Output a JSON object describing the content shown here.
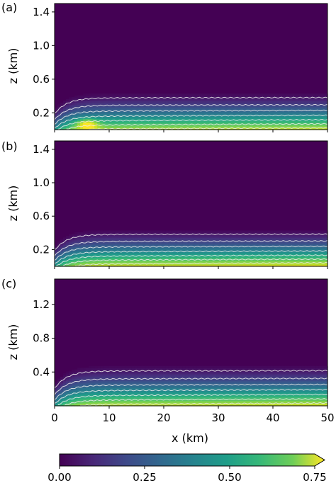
{
  "chart_data": {
    "type": "heatmap",
    "colormap": "viridis",
    "contour_color": "#e8e8e8",
    "panels": [
      {
        "label": "(a)",
        "ylabel": "z (km)",
        "yticks": [
          0.2,
          0.6,
          1.0,
          1.4
        ],
        "ytick_labels": [
          "0.2",
          "0.6",
          "1.0",
          "1.4"
        ],
        "ylim": [
          0,
          1.5
        ],
        "xlim": [
          0,
          50
        ],
        "plume_top_km": 0.46,
        "max_value": 0.7,
        "hotspot_x_km": 6,
        "contour_levels": [
          0.05,
          0.15,
          0.25,
          0.35,
          0.45,
          0.55,
          0.65
        ]
      },
      {
        "label": "(b)",
        "ylabel": "z (km)",
        "yticks": [
          0.2,
          0.6,
          1.0,
          1.4
        ],
        "ytick_labels": [
          "0.2",
          "0.6",
          "1.0",
          "1.4"
        ],
        "ylim": [
          0,
          1.5
        ],
        "xlim": [
          0,
          50
        ],
        "plume_top_km": 0.46,
        "max_value": 0.75,
        "hotspot_x_km": null,
        "contour_levels": [
          0.05,
          0.15,
          0.25,
          0.35,
          0.45,
          0.55,
          0.65
        ]
      },
      {
        "label": "(c)",
        "ylabel": "z (km)",
        "yticks": [
          0.4,
          0.8,
          1.2
        ],
        "ytick_labels": [
          "0.4",
          "0.8",
          "1.2"
        ],
        "ylim": [
          0,
          1.5
        ],
        "xlim": [
          0,
          50
        ],
        "plume_top_km": 0.5,
        "max_value": 0.72,
        "hotspot_x_km": null,
        "contour_levels": [
          0.05,
          0.15,
          0.25,
          0.35,
          0.45,
          0.55,
          0.65
        ]
      }
    ],
    "xlabel": "x (km)",
    "xticks": [
      0,
      10,
      20,
      30,
      40,
      50
    ],
    "xtick_labels": [
      "0",
      "10",
      "20",
      "30",
      "40",
      "50"
    ],
    "colorbar": {
      "range": [
        0,
        0.75
      ],
      "extend": "max",
      "ticks": [
        0,
        0.25,
        0.5,
        0.75
      ],
      "tick_labels": [
        "0.00",
        "0.25",
        "0.50",
        "0.75"
      ]
    }
  }
}
